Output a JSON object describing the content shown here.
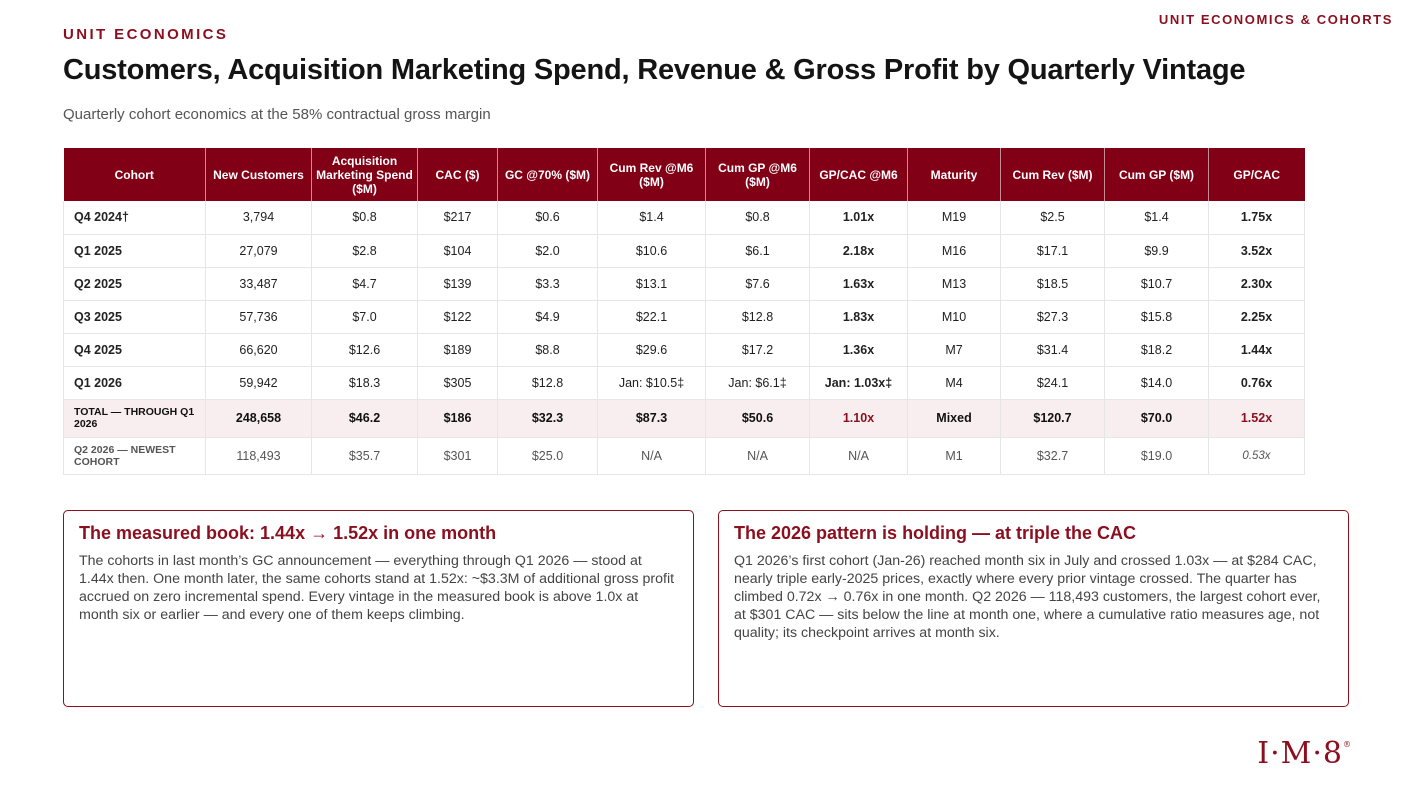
{
  "header": {
    "tag": "UNIT ECONOMICS & COHORTS",
    "eyebrow": "UNIT ECONOMICS",
    "title": "Customers, Acquisition Marketing Spend, Revenue & Gross Profit by Quarterly Vintage",
    "subtitle": "Quarterly cohort economics at the 58% contractual gross margin"
  },
  "table": {
    "columns": [
      "Cohort",
      "New Customers",
      "Acquisition Marketing Spend ($M)",
      "CAC ($)",
      "GC @70% ($M)",
      "Cum Rev @M6 ($M)",
      "Cum GP @M6 ($M)",
      "GP/CAC @M6",
      "Maturity",
      "Cum Rev ($M)",
      "Cum GP ($M)",
      "GP/CAC"
    ],
    "rows": [
      {
        "cohort": "Q4 2024†",
        "new_customers": "3,794",
        "spend": "$0.8",
        "cac": "$217",
        "gc": "$0.6",
        "rev_m6": "$1.4",
        "gp_m6": "$0.8",
        "gpcac_m6": "1.01x",
        "maturity": "M19",
        "cum_rev": "$2.5",
        "cum_gp": "$1.4",
        "gpcac": "1.75x"
      },
      {
        "cohort": "Q1 2025",
        "new_customers": "27,079",
        "spend": "$2.8",
        "cac": "$104",
        "gc": "$2.0",
        "rev_m6": "$10.6",
        "gp_m6": "$6.1",
        "gpcac_m6": "2.18x",
        "maturity": "M16",
        "cum_rev": "$17.1",
        "cum_gp": "$9.9",
        "gpcac": "3.52x"
      },
      {
        "cohort": "Q2 2025",
        "new_customers": "33,487",
        "spend": "$4.7",
        "cac": "$139",
        "gc": "$3.3",
        "rev_m6": "$13.1",
        "gp_m6": "$7.6",
        "gpcac_m6": "1.63x",
        "maturity": "M13",
        "cum_rev": "$18.5",
        "cum_gp": "$10.7",
        "gpcac": "2.30x"
      },
      {
        "cohort": "Q3 2025",
        "new_customers": "57,736",
        "spend": "$7.0",
        "cac": "$122",
        "gc": "$4.9",
        "rev_m6": "$22.1",
        "gp_m6": "$12.8",
        "gpcac_m6": "1.83x",
        "maturity": "M10",
        "cum_rev": "$27.3",
        "cum_gp": "$15.8",
        "gpcac": "2.25x"
      },
      {
        "cohort": "Q4 2025",
        "new_customers": "66,620",
        "spend": "$12.6",
        "cac": "$189",
        "gc": "$8.8",
        "rev_m6": "$29.6",
        "gp_m6": "$17.2",
        "gpcac_m6": "1.36x",
        "maturity": "M7",
        "cum_rev": "$31.4",
        "cum_gp": "$18.2",
        "gpcac": "1.44x"
      },
      {
        "cohort": "Q1 2026",
        "new_customers": "59,942",
        "spend": "$18.3",
        "cac": "$305",
        "gc": "$12.8",
        "rev_m6": "Jan: $10.5‡",
        "gp_m6": "Jan: $6.1‡",
        "gpcac_m6": "Jan: 1.03x‡",
        "maturity": "M4",
        "cum_rev": "$24.1",
        "cum_gp": "$14.0",
        "gpcac": "0.76x"
      }
    ],
    "total": {
      "cohort": "TOTAL — THROUGH Q1 2026",
      "new_customers": "248,658",
      "spend": "$46.2",
      "cac": "$186",
      "gc": "$32.3",
      "rev_m6": "$87.3",
      "gp_m6": "$50.6",
      "gpcac_m6": "1.10x",
      "maturity": "Mixed",
      "cum_rev": "$120.7",
      "cum_gp": "$70.0",
      "gpcac": "1.52x"
    },
    "newest": {
      "cohort": "Q2 2026 — NEWEST COHORT",
      "new_customers": "118,493",
      "spend": "$35.7",
      "cac": "$301",
      "gc": "$25.0",
      "rev_m6": "N/A",
      "gp_m6": "N/A",
      "gpcac_m6": "N/A",
      "maturity": "M1",
      "cum_rev": "$32.7",
      "cum_gp": "$19.0",
      "gpcac": "0.53x"
    }
  },
  "cards": {
    "left": {
      "title": "The measured book: 1.44x → 1.52x in one month",
      "body": "The cohorts in last month’s GC announcement — everything through Q1 2026 — stood at 1.44x then. One month later, the same cohorts stand at 1.52x: ~$3.3M of additional gross profit accrued on zero incremental spend. Every vintage in the measured book is above 1.0x at month six or earlier — and every one of them keeps climbing."
    },
    "right": {
      "title": "The 2026 pattern is holding — at triple the CAC",
      "body": "Q1 2026’s first cohort (Jan-26) reached month six in July and crossed 1.03x — at $284 CAC, nearly triple early-2025 prices, exactly where every prior vintage crossed. The quarter has climbed 0.72x → 0.76x in one month. Q2 2026 — 118,493 customers, the largest cohort ever, at $301 CAC — sits below the line at month one, where a cumulative ratio measures age, not quality; its checkpoint arrives at month six."
    }
  },
  "logo": {
    "text": "I·M·8",
    "mark": "®"
  }
}
